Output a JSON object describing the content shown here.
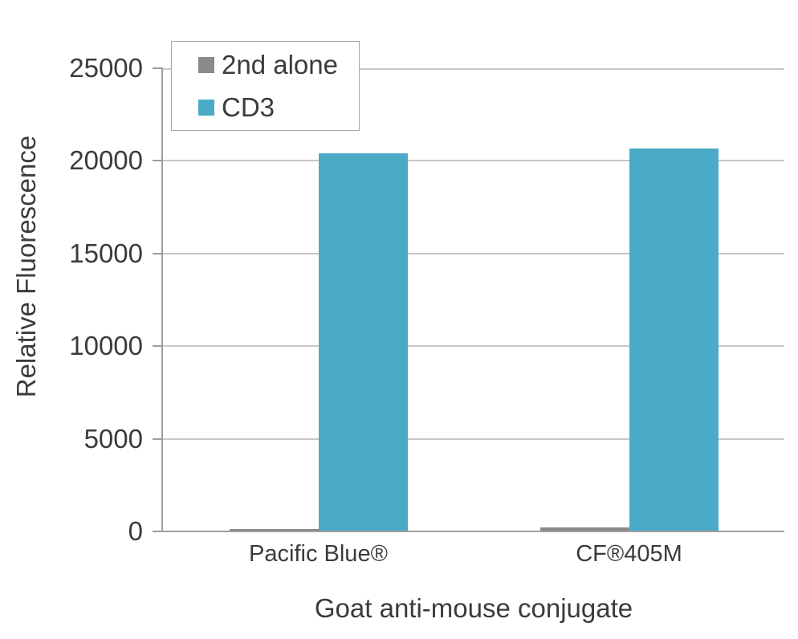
{
  "chart_data": {
    "type": "bar",
    "title": "",
    "xlabel": "Goat anti-mouse conjugate",
    "ylabel": "Relative Fluorescence",
    "categories": [
      "Pacific Blue®",
      "CF®405M"
    ],
    "series": [
      {
        "name": "2nd alone",
        "color": "#8a8a8a",
        "values": [
          150,
          200
        ]
      },
      {
        "name": "CD3",
        "color": "#4baac8",
        "values": [
          20400,
          20650
        ]
      }
    ],
    "ylim": [
      0,
      25000
    ],
    "ytick_interval": 5000,
    "ytick_labels": [
      "0",
      "5000",
      "10000",
      "15000",
      "20000",
      "25000"
    ],
    "grid": true,
    "legend_position": "top-left"
  },
  "colors": {
    "background": "#ffffff",
    "text": "#3b3b3b",
    "axis_line": "#9d9d9d",
    "gridline": "#c7c7c7",
    "legend_border": "#a8a8a8"
  }
}
